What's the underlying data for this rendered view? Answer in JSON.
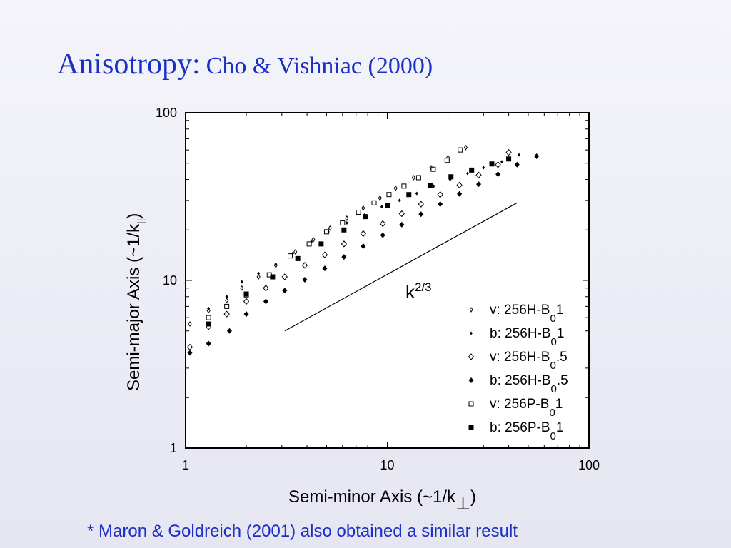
{
  "slide": {
    "title_main": "Anisotropy:",
    "title_sub": "Cho & Vishniac (2000)",
    "footnote": "* Maron & Goldreich (2001) also obtained a similar result"
  },
  "chart_data": {
    "type": "scatter",
    "xscale": "log",
    "yscale": "log",
    "xlim": [
      1,
      100
    ],
    "ylim": [
      1,
      100
    ],
    "xlabel": "Semi-minor Axis (~1/k",
    "xlabel_sub": "⊥",
    "xlabel_close": ")",
    "ylabel": "Semi-major Axis (~1/k",
    "ylabel_sub": "||",
    "ylabel_close": ")",
    "x_ticks": [
      "1",
      "10",
      "100"
    ],
    "y_ticks": [
      "1",
      "10",
      "100"
    ],
    "grid": false,
    "legend_position": "bottom-right",
    "series": [
      {
        "name": "v: 256H-B",
        "name_sub": "0",
        "name_suffix": "1",
        "marker": "small-open-diamond",
        "x": [
          1.05,
          1.3,
          1.6,
          1.9,
          2.3,
          2.8,
          3.5,
          4.3,
          5.2,
          6.3,
          7.6,
          9.2,
          11.0,
          13.5,
          16.5,
          20.0,
          24.5
        ],
        "y": [
          5.5,
          6.6,
          7.6,
          9.0,
          10.5,
          12.3,
          14.8,
          17.5,
          20.5,
          23.5,
          27.0,
          31.0,
          35.5,
          41.0,
          47.0,
          54.0,
          62.0
        ]
      },
      {
        "name": "b: 256H-B",
        "name_sub": "0",
        "name_suffix": "1",
        "marker": "small-filled-diamond",
        "x": [
          1.3,
          1.6,
          1.9,
          2.3,
          2.8,
          3.4,
          4.2,
          5.1,
          6.3,
          7.7,
          9.4,
          11.5,
          14.0,
          17.0,
          20.5,
          25.0,
          30.0,
          37.0,
          45.0
        ],
        "y": [
          6.8,
          8.0,
          9.8,
          11.0,
          12.5,
          14.5,
          17.0,
          19.5,
          22.0,
          24.5,
          27.5,
          30.0,
          33.0,
          36.5,
          40.0,
          43.5,
          47.0,
          51.0,
          56.0
        ]
      },
      {
        "name": "v: 256H-B",
        "name_sub": "0",
        "name_suffix": ".5",
        "marker": "open-diamond",
        "x": [
          1.05,
          1.3,
          1.6,
          2.0,
          2.5,
          3.1,
          3.9,
          4.9,
          6.1,
          7.6,
          9.5,
          11.8,
          14.7,
          18.3,
          22.8,
          28.4,
          35.4,
          40.0
        ],
        "y": [
          4.0,
          5.3,
          6.3,
          7.5,
          9.0,
          10.5,
          12.3,
          14.2,
          16.5,
          19.0,
          21.8,
          25.0,
          28.5,
          32.5,
          37.0,
          42.5,
          49.0,
          58.0
        ]
      },
      {
        "name": "b: 256H-B",
        "name_sub": "0",
        "name_suffix": ".5",
        "marker": "filled-diamond",
        "x": [
          1.05,
          1.3,
          1.65,
          2.0,
          2.5,
          3.1,
          3.9,
          4.9,
          6.1,
          7.6,
          9.5,
          11.8,
          14.7,
          18.3,
          22.8,
          28.4,
          35.4,
          44.0,
          55.0
        ],
        "y": [
          3.7,
          4.2,
          5.0,
          6.3,
          7.5,
          8.7,
          10.1,
          11.8,
          13.8,
          16.0,
          18.6,
          21.5,
          24.8,
          28.5,
          32.8,
          37.5,
          43.0,
          49.0,
          55.0
        ]
      },
      {
        "name": "v: 256P-B",
        "name_sub": "0",
        "name_suffix": "1",
        "marker": "open-square",
        "x": [
          1.3,
          1.6,
          2.0,
          2.6,
          3.3,
          4.1,
          5.0,
          6.0,
          7.2,
          8.6,
          10.2,
          12.1,
          14.3,
          16.9,
          19.8,
          23.0
        ],
        "y": [
          6.0,
          7.0,
          8.2,
          10.8,
          14.0,
          16.5,
          19.5,
          22.0,
          25.5,
          29.0,
          32.5,
          36.5,
          41.0,
          46.0,
          52.0,
          60.0
        ]
      },
      {
        "name": "b: 256P-B",
        "name_sub": "0",
        "name_suffix": "1",
        "marker": "filled-square",
        "x": [
          1.3,
          2.0,
          2.7,
          3.6,
          4.7,
          6.1,
          7.8,
          10.0,
          12.8,
          16.3,
          20.7,
          26.2,
          33.0,
          40.0
        ],
        "y": [
          5.5,
          8.3,
          10.5,
          13.5,
          16.5,
          20.0,
          24.0,
          28.0,
          32.5,
          37.0,
          41.5,
          45.5,
          49.5,
          53.0
        ]
      }
    ],
    "reference_line": {
      "label": "k",
      "label_sup": "2/3",
      "x": [
        3.1,
        44.0
      ],
      "y": [
        5.0,
        29.0
      ]
    }
  }
}
